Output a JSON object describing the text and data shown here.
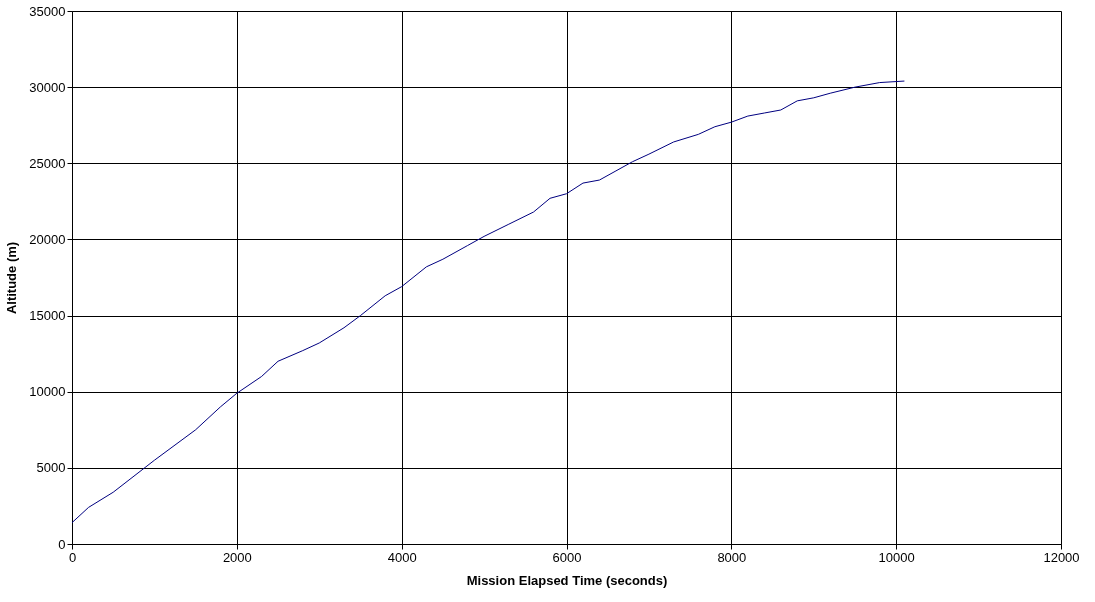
{
  "chart_data": {
    "type": "line",
    "xlabel": "Mission Elapsed Time (seconds)",
    "ylabel": "Altitude (m)",
    "xlim": [
      0,
      12000
    ],
    "xticks": [
      0,
      2000,
      4000,
      6000,
      8000,
      10000,
      12000
    ],
    "ylim": [
      0,
      35000
    ],
    "yticks": [
      0,
      5000,
      10000,
      15000,
      20000,
      25000,
      30000,
      35000
    ],
    "grid": true,
    "marker": "none",
    "line_style": "solid",
    "x": [
      0,
      200,
      500,
      1000,
      1500,
      1800,
      2000,
      2300,
      2500,
      2800,
      3000,
      3300,
      3500,
      3800,
      4000,
      4300,
      4500,
      4800,
      5000,
      5300,
      5600,
      5800,
      6000,
      6200,
      6400,
      6600,
      6800,
      7000,
      7300,
      7600,
      7800,
      8000,
      8200,
      8400,
      8600,
      8800,
      9000,
      9200,
      9500,
      9800,
      10100
    ],
    "series": [
      {
        "color": "#000080",
        "values": [
          1400,
          2400,
          3400,
          5500,
          7500,
          9000,
          9900,
          11000,
          12000,
          12700,
          13200,
          14200,
          15000,
          16300,
          16900,
          18200,
          18700,
          19600,
          20200,
          21000,
          21800,
          22700,
          23000,
          23700,
          23900,
          24500,
          25100,
          25600,
          26400,
          26900,
          27400,
          27700,
          28100,
          28300,
          28500,
          29100,
          29300,
          29600,
          30000,
          30300,
          30400
        ]
      }
    ]
  }
}
